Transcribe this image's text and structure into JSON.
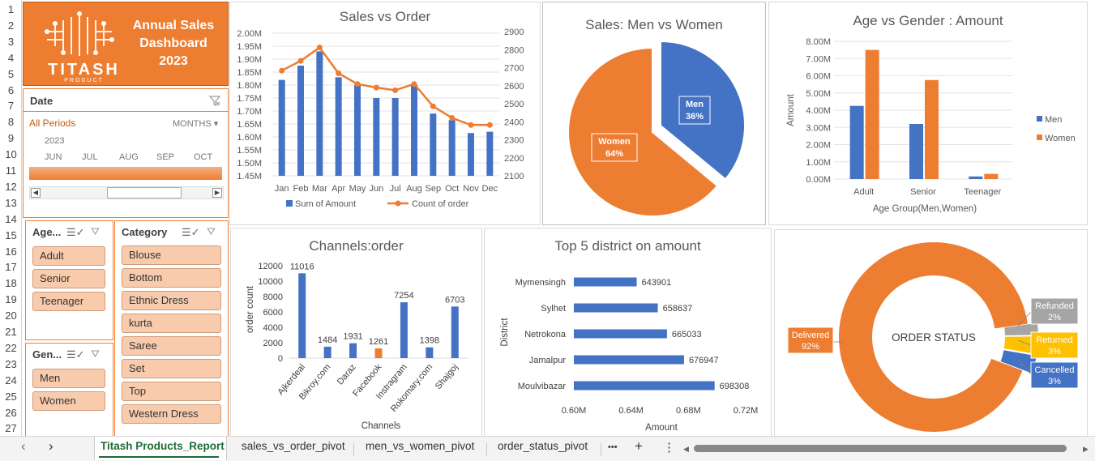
{
  "row_numbers": [
    "1",
    "2",
    "3",
    "4",
    "5",
    "6",
    "7",
    "8",
    "9",
    "10",
    "11",
    "12",
    "13",
    "14",
    "15",
    "16",
    "17",
    "18",
    "19",
    "20",
    "21",
    "22",
    "23",
    "24",
    "25",
    "26",
    "27"
  ],
  "logo": {
    "title_line1": "Annual Sales",
    "title_line2": "Dashboard",
    "title_line3": "2023",
    "brand": "TITASH",
    "brand_sub": "PRODUCT"
  },
  "date_slicer": {
    "title": "Date",
    "all_periods": "All Periods",
    "period_unit": "MONTHS",
    "year": "2023",
    "months": [
      "JUN",
      "JUL",
      "AUG",
      "SEP",
      "OCT"
    ]
  },
  "age_slicer": {
    "title": "Age...",
    "items": [
      "Adult",
      "Senior",
      "Teenager"
    ]
  },
  "gender_slicer": {
    "title": "Gen...",
    "items": [
      "Men",
      "Women"
    ]
  },
  "category_slicer": {
    "title": "Category",
    "items": [
      "Blouse",
      "Bottom",
      "Ethnic Dress",
      "kurta",
      "Saree",
      "Set",
      "Top",
      "Western Dress"
    ]
  },
  "colors": {
    "blue": "#4472c4",
    "orange": "#ed7d31",
    "gray": "#a5a5a5",
    "gold": "#ffc000",
    "peach": "#f8cbad"
  },
  "chart_data": [
    {
      "type": "bar",
      "title": "Sales vs Order",
      "categories": [
        "Jan",
        "Feb",
        "Mar",
        "Apr",
        "May",
        "Jun",
        "Jul",
        "Aug",
        "Sep",
        "Oct",
        "Nov",
        "Dec"
      ],
      "series": [
        {
          "name": "Sum of Amount",
          "type": "bar",
          "axis": "left",
          "values": [
            1820000,
            1875000,
            1930000,
            1830000,
            1800000,
            1750000,
            1750000,
            1800000,
            1690000,
            1665000,
            1615000,
            1620000
          ]
        },
        {
          "name": "Count of order",
          "type": "line",
          "axis": "right",
          "values": [
            2690,
            2745,
            2820,
            2675,
            2615,
            2595,
            2580,
            2615,
            2490,
            2425,
            2385,
            2385
          ]
        }
      ],
      "left_ticks": [
        "2.00M",
        "1.95M",
        "1.90M",
        "1.85M",
        "1.80M",
        "1.75M",
        "1.70M",
        "1.65M",
        "1.60M",
        "1.55M",
        "1.50M",
        "1.45M"
      ],
      "right_ticks": [
        "2900",
        "2800",
        "2700",
        "2600",
        "2500",
        "2400",
        "2300",
        "2200",
        "2100"
      ],
      "ylim_left": [
        1450000,
        2000000
      ],
      "ylim_right": [
        2100,
        2900
      ]
    },
    {
      "type": "pie",
      "title": "Sales: Men vs Women",
      "slices": [
        {
          "name": "Men",
          "label": "36%",
          "value": 36
        },
        {
          "name": "Women",
          "label": "64%",
          "value": 64
        }
      ]
    },
    {
      "type": "bar",
      "title": "Age vs Gender : Amount",
      "xlabel": "Age Group(Men,Women)",
      "ylabel": "Amount",
      "categories": [
        "Adult",
        "Senior",
        "Teenager"
      ],
      "series": [
        {
          "name": "Men",
          "values": [
            4250000,
            3200000,
            150000
          ]
        },
        {
          "name": "Women",
          "values": [
            7500000,
            5750000,
            300000
          ]
        }
      ],
      "y_ticks": [
        "8.00M",
        "7.00M",
        "6.00M",
        "5.00M",
        "4.00M",
        "3.00M",
        "2.00M",
        "1.00M",
        "0.00M"
      ],
      "ylim": [
        0,
        8000000
      ],
      "legend": "right"
    },
    {
      "type": "bar",
      "title": "Channels:order",
      "xlabel": "Channels",
      "ylabel": "order count",
      "categories": [
        "Ajkerdeal",
        "Bikroy.com",
        "Daraz",
        "Facebook",
        "Instragram",
        "Rokomary.com",
        "Shajgoj"
      ],
      "values": [
        11016,
        1484,
        1931,
        1261,
        7254,
        1398,
        6703
      ],
      "labels": [
        "11016",
        "1484",
        "1931",
        "1261",
        "7254",
        "1398",
        "6703"
      ],
      "y_ticks": [
        "12000",
        "10000",
        "8000",
        "6000",
        "4000",
        "2000",
        "0"
      ],
      "ylim": [
        0,
        12000
      ],
      "highlight": "Facebook"
    },
    {
      "type": "bar",
      "orientation": "horizontal",
      "title": "Top 5 district on amount",
      "xlabel": "Amount",
      "ylabel": "District",
      "categories": [
        "Mymensingh",
        "Sylhet",
        "Netrokona",
        "Jamalpur",
        "Moulvibazar"
      ],
      "values": [
        643901,
        658637,
        665033,
        676947,
        698308
      ],
      "labels": [
        "643901",
        "658637",
        "665033",
        "676947",
        "698308"
      ],
      "x_ticks": [
        "0.60M",
        "0.64M",
        "0.68M",
        "0.72M"
      ],
      "xlim": [
        600000,
        720000
      ]
    },
    {
      "type": "pie",
      "title": "ORDER STATUS",
      "slices": [
        {
          "name": "Delivered",
          "label": "92%",
          "value": 92
        },
        {
          "name": "Refunded",
          "label": "2%",
          "value": 2
        },
        {
          "name": "Returned",
          "label": "3%",
          "value": 3
        },
        {
          "name": "Cancelled",
          "label": "3%",
          "value": 3
        }
      ]
    }
  ],
  "sheet_tabs": [
    "Titash Products_Report",
    "sales_vs_order_pivot",
    "men_vs_women_pivot",
    "order_status_pivot"
  ],
  "tab_more": "•••",
  "tab_add": "+",
  "tab_menu": "⋮",
  "nav_prev": "‹",
  "nav_next": "›"
}
